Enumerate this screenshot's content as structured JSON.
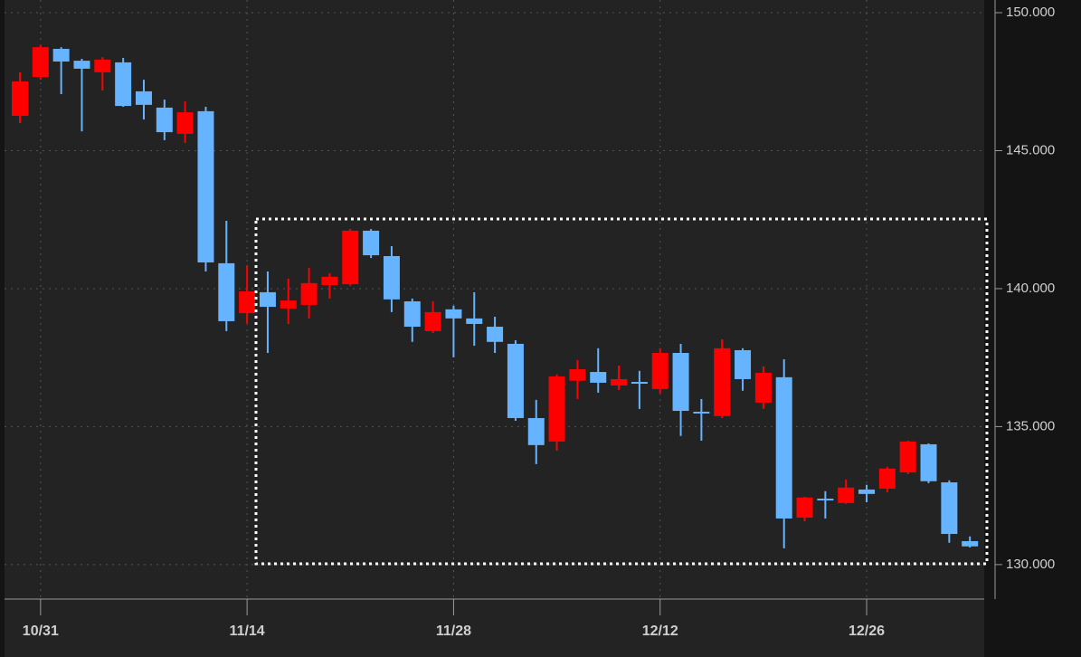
{
  "chart_data": {
    "type": "candlestick",
    "categories": [
      null,
      "10/31",
      null,
      null,
      null,
      null,
      null,
      null,
      null,
      null,
      null,
      "11/14",
      null,
      null,
      null,
      null,
      null,
      null,
      null,
      null,
      null,
      "11/28",
      null,
      null,
      null,
      null,
      null,
      null,
      null,
      null,
      null,
      "12/12",
      null,
      null,
      null,
      null,
      null,
      null,
      null,
      null,
      null,
      "12/26",
      null,
      null,
      null,
      null,
      null
    ],
    "open": [
      146.26,
      147.67,
      148.69,
      148.26,
      147.84,
      148.2,
      147.15,
      146.56,
      145.61,
      146.43,
      140.92,
      139.11,
      139.87,
      139.28,
      139.41,
      140.13,
      140.16,
      142.1,
      141.18,
      139.54,
      138.46,
      139.25,
      138.92,
      138.62,
      138.0,
      135.31,
      134.46,
      136.66,
      136.98,
      136.49,
      136.62,
      136.36,
      137.67,
      135.54,
      135.38,
      137.77,
      135.87,
      136.79,
      131.7,
      132.39,
      132.23,
      132.72,
      132.75,
      133.34,
      134.36,
      132.98,
      130.85
    ],
    "high": [
      147.84,
      148.82,
      148.75,
      148.33,
      148.39,
      148.36,
      147.57,
      146.85,
      146.79,
      146.59,
      142.46,
      140.85,
      140.62,
      140.36,
      140.75,
      140.56,
      142.16,
      142.16,
      141.54,
      139.64,
      139.54,
      139.38,
      139.87,
      138.98,
      138.13,
      135.97,
      136.89,
      137.41,
      137.84,
      137.21,
      137.02,
      137.84,
      138.0,
      136.0,
      138.16,
      137.84,
      137.18,
      137.44,
      132.46,
      132.66,
      133.08,
      132.89,
      133.54,
      134.49,
      134.39,
      133.05,
      131.02
    ],
    "low": [
      146.0,
      147.57,
      147.05,
      145.7,
      147.18,
      146.59,
      146.13,
      145.38,
      145.28,
      140.62,
      138.46,
      138.75,
      137.67,
      138.72,
      138.92,
      139.64,
      140.1,
      141.11,
      139.15,
      138.07,
      138.39,
      137.51,
      137.93,
      137.67,
      135.21,
      133.64,
      134.13,
      136.0,
      136.23,
      136.33,
      135.64,
      136.2,
      134.66,
      134.49,
      135.31,
      136.3,
      135.64,
      130.59,
      131.57,
      131.67,
      132.2,
      132.26,
      132.62,
      133.28,
      132.95,
      130.79,
      130.62
    ],
    "close": [
      147.51,
      148.75,
      148.23,
      147.97,
      148.3,
      146.62,
      146.66,
      145.67,
      146.39,
      140.95,
      138.82,
      139.9,
      139.34,
      139.57,
      140.2,
      140.43,
      142.1,
      141.21,
      139.61,
      138.62,
      139.15,
      138.92,
      138.72,
      138.07,
      135.31,
      134.33,
      136.82,
      137.08,
      136.59,
      136.72,
      136.56,
      137.67,
      135.57,
      135.48,
      137.84,
      136.72,
      136.95,
      131.67,
      132.43,
      132.36,
      132.79,
      132.56,
      133.48,
      134.46,
      133.02,
      131.11,
      130.66
    ],
    "up_color": "#ff0000",
    "down_color": "#66b3ff",
    "ylim": [
      128.75,
      150.46
    ],
    "yticks": [
      {
        "value": 130,
        "label": "130.000"
      },
      {
        "value": 135,
        "label": "135.000"
      },
      {
        "value": 140,
        "label": "140.000"
      },
      {
        "value": 145,
        "label": "145.000"
      },
      {
        "value": 150,
        "label": "150.000"
      }
    ],
    "grid": true
  }
}
